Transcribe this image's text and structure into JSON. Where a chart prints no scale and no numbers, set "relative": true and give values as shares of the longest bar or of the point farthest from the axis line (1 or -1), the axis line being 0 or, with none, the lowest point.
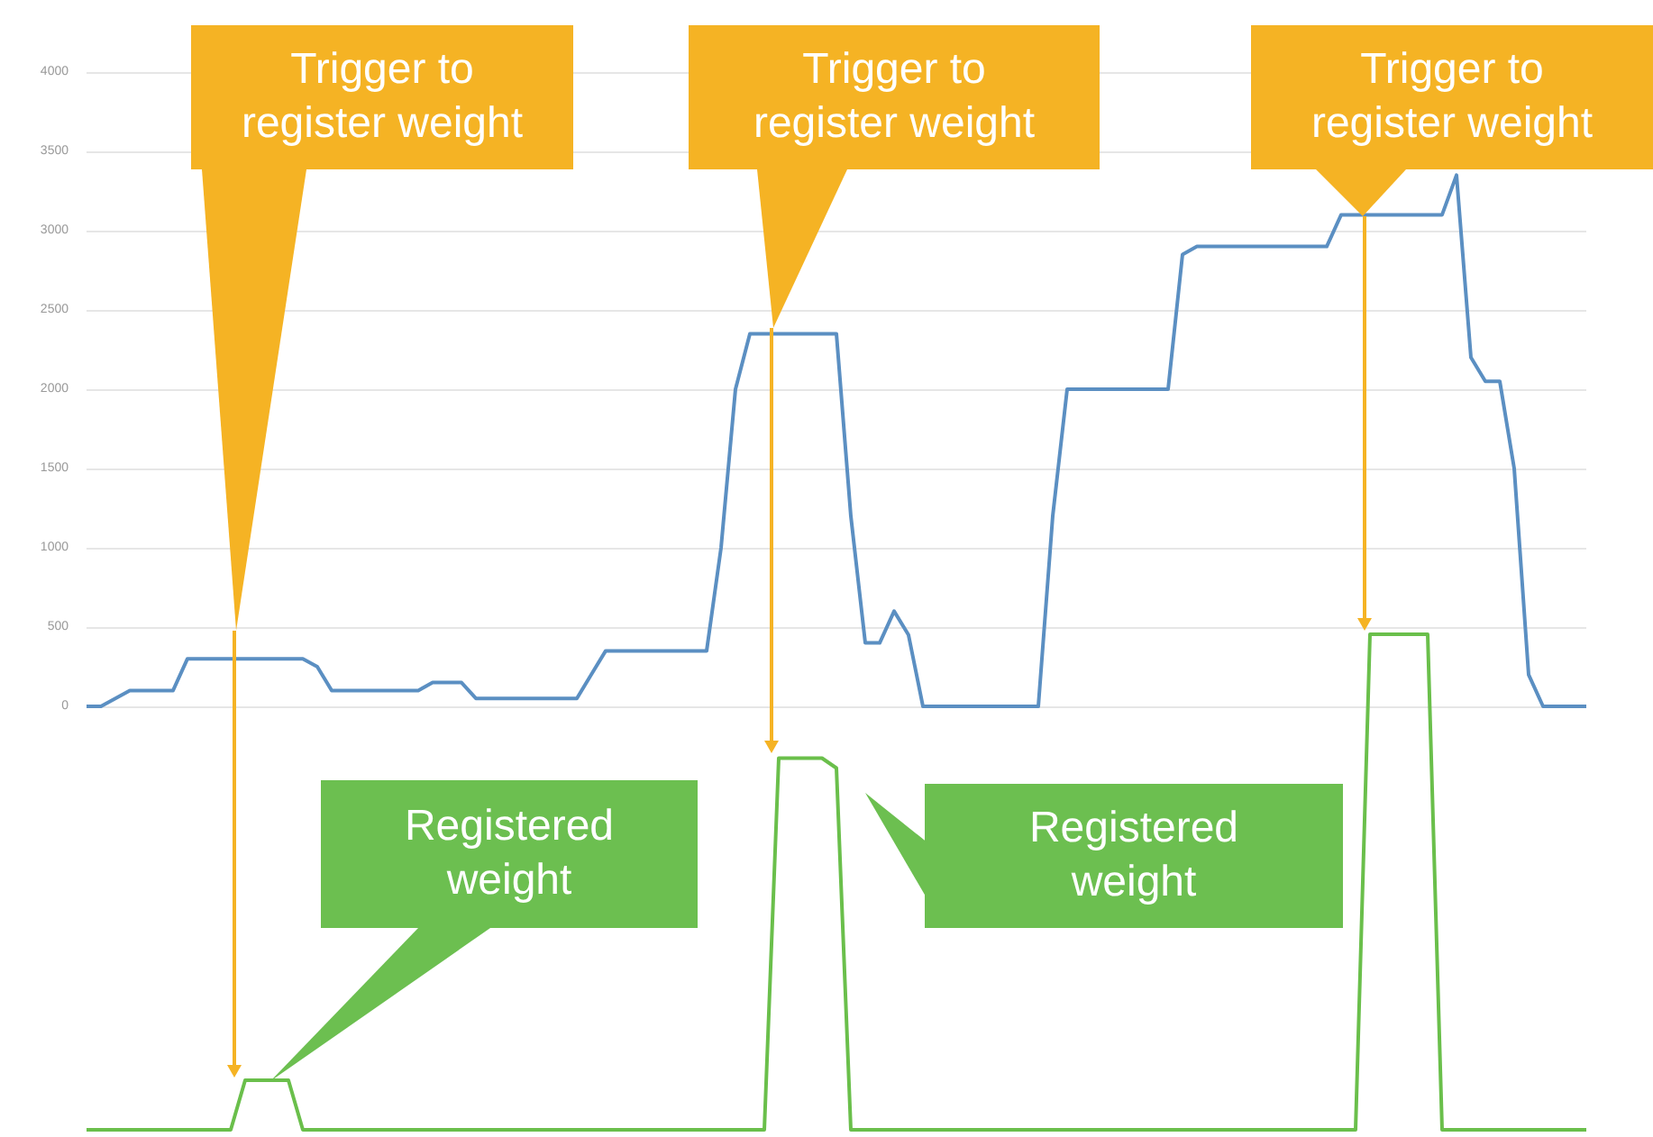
{
  "chart_data": [
    {
      "type": "line",
      "categories": [
        null,
        null,
        null,
        null,
        null,
        null,
        null,
        null,
        null,
        null,
        null,
        null,
        null,
        null,
        null,
        null,
        null,
        null,
        null,
        null,
        null,
        null,
        null,
        null,
        null,
        null,
        null,
        null,
        null,
        null,
        null,
        null,
        null,
        null,
        null,
        null,
        null,
        null,
        null,
        null,
        null,
        null,
        null,
        null,
        null,
        null,
        null,
        null,
        null,
        null,
        null,
        null,
        null,
        null,
        null,
        null,
        null,
        null,
        null,
        null,
        null,
        null,
        null,
        null,
        null,
        null,
        null,
        null,
        null,
        null,
        null,
        null,
        null,
        null,
        null,
        null,
        null,
        null,
        null,
        null,
        null,
        null,
        null,
        null,
        null,
        null,
        null,
        null,
        null,
        null,
        null,
        null,
        null,
        null,
        null,
        null,
        null,
        null,
        null,
        null,
        null,
        null,
        null,
        null,
        null
      ],
      "series": [
        {
          "color": "#5b8fc2",
          "values": [
            0,
            0,
            50,
            100,
            100,
            100,
            100,
            300,
            300,
            300,
            300,
            300,
            300,
            300,
            300,
            300,
            250,
            100,
            100,
            100,
            100,
            100,
            100,
            100,
            150,
            150,
            150,
            50,
            50,
            50,
            50,
            50,
            50,
            50,
            50,
            200,
            350,
            350,
            350,
            350,
            350,
            350,
            350,
            350,
            1000,
            2000,
            2350,
            2350,
            2350,
            2350,
            2350,
            2350,
            2350,
            1200,
            400,
            400,
            600,
            450,
            0,
            0,
            0,
            0,
            0,
            0,
            0,
            0,
            0,
            1200,
            2000,
            2000,
            2000,
            2000,
            2000,
            2000,
            2000,
            2000,
            2850,
            2900,
            2900,
            2900,
            2900,
            2900,
            2900,
            2900,
            2900,
            2900,
            2900,
            3100,
            3100,
            3100,
            3100,
            3100,
            3100,
            3100,
            3100,
            3350,
            2200,
            2050,
            2050,
            1500,
            200,
            0,
            0,
            0,
            0
          ]
        }
      ],
      "ylim": [
        0,
        4000
      ],
      "yticks": [
        0,
        500,
        1000,
        1500,
        2000,
        2500,
        3000,
        3500,
        4000
      ],
      "grid": "y",
      "tick_labels": "y",
      "annotations": [
        "Trigger to register weight",
        "Trigger to register weight",
        "Trigger to register weight"
      ]
    },
    {
      "type": "line",
      "relative": true,
      "categories": [
        null,
        null,
        null,
        null,
        null,
        null,
        null,
        null,
        null,
        null,
        null,
        null,
        null,
        null,
        null,
        null,
        null,
        null,
        null,
        null,
        null,
        null,
        null,
        null,
        null,
        null,
        null,
        null,
        null,
        null,
        null,
        null,
        null,
        null,
        null,
        null,
        null,
        null,
        null,
        null,
        null,
        null,
        null,
        null,
        null,
        null,
        null,
        null,
        null,
        null,
        null,
        null,
        null,
        null,
        null,
        null,
        null,
        null,
        null,
        null,
        null,
        null,
        null,
        null,
        null,
        null,
        null,
        null,
        null,
        null,
        null,
        null,
        null,
        null,
        null,
        null,
        null,
        null,
        null,
        null,
        null,
        null,
        null,
        null,
        null,
        null,
        null,
        null,
        null,
        null,
        null,
        null,
        null,
        null,
        null,
        null,
        null,
        null,
        null,
        null,
        null,
        null,
        null,
        null,
        null
      ],
      "series": [
        {
          "color": "#6abf4b",
          "values": [
            0,
            0,
            0,
            0,
            0,
            0,
            0,
            0,
            0,
            0,
            0,
            0.1,
            0.1,
            0.1,
            0.1,
            0,
            0,
            0,
            0,
            0,
            0,
            0,
            0,
            0,
            0,
            0,
            0,
            0,
            0,
            0,
            0,
            0,
            0,
            0,
            0,
            0,
            0,
            0,
            0,
            0,
            0,
            0,
            0,
            0,
            0,
            0,
            0,
            0,
            0.75,
            0.75,
            0.75,
            0.75,
            0.73,
            0,
            0,
            0,
            0,
            0,
            0,
            0,
            0,
            0,
            0,
            0,
            0,
            0,
            0,
            0,
            0,
            0,
            0,
            0,
            0,
            0,
            0,
            0,
            0,
            0,
            0,
            0,
            0,
            0,
            0,
            0,
            0,
            0,
            0,
            0,
            0,
            1,
            1,
            1,
            1,
            1,
            0,
            0,
            0,
            0,
            0,
            0,
            0,
            0,
            0,
            0,
            0
          ]
        }
      ],
      "tick_labels": false,
      "annotations": [
        "Registered weight",
        "Registered weight"
      ]
    }
  ]
}
